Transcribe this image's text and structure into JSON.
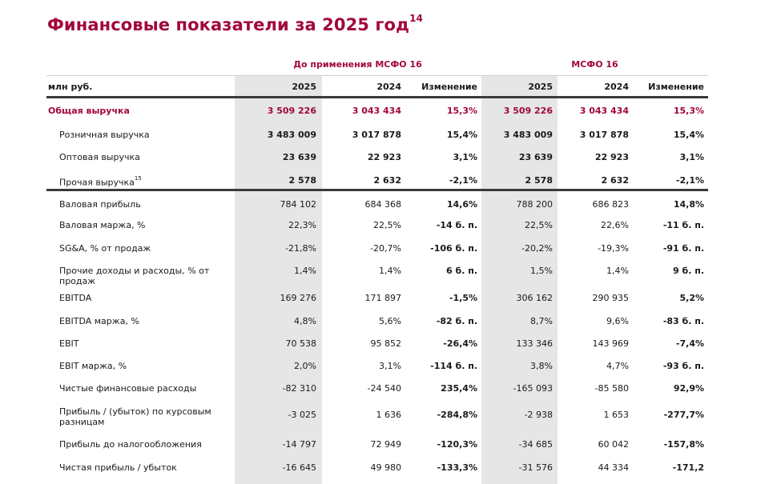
{
  "title": "Финансовые показатели за 2025 год",
  "title_footnote": "14",
  "groups": {
    "before": "До применения МСФО 16",
    "ifrs": "МСФО 16"
  },
  "header": {
    "unit": "млн руб.",
    "c1": "2025",
    "c2": "2024",
    "c3": "Изменение",
    "c4": "2025",
    "c5": "2024",
    "c6": "Изменение"
  },
  "rows": [
    {
      "label": "Общая выручка",
      "v": [
        "3 509 226",
        "3 043 434",
        "15,3%",
        "3 509 226",
        "3 043 434",
        "15,3%"
      ]
    },
    {
      "label": "Розничная выручка",
      "v": [
        "3 483 009",
        "3 017 878",
        "15,4%",
        "3 483 009",
        "3 017 878",
        "15,4%"
      ]
    },
    {
      "label": "Оптовая выручка",
      "v": [
        "23 639",
        "22 923",
        "3,1%",
        "23 639",
        "22 923",
        "3,1%"
      ]
    },
    {
      "label": "Прочая выручка",
      "footnote": "15",
      "v": [
        "2 578",
        "2 632",
        "-2,1%",
        "2 578",
        "2 632",
        "-2,1%"
      ]
    },
    {
      "label": "Валовая прибыль",
      "v": [
        "784 102",
        "684 368",
        "14,6%",
        "788 200",
        "686 823",
        "14,8%"
      ]
    },
    {
      "label": "Валовая маржа, %",
      "v": [
        "22,3%",
        "22,5%",
        "-14 б. п.",
        "22,5%",
        "22,6%",
        "-11 б. п."
      ]
    },
    {
      "label": "SG&A, % от продаж",
      "v": [
        "-21,8%",
        "-20,7%",
        "-106 б. п.",
        "-20,2%",
        "-19,3%",
        "-91 б. п."
      ]
    },
    {
      "label": "Прочие доходы и расходы, % от продаж",
      "v": [
        "1,4%",
        "1,4%",
        "6 б. п.",
        "1,5%",
        "1,4%",
        "9 б. п."
      ]
    },
    {
      "label": "EBITDA",
      "v": [
        "169 276",
        "171 897",
        "-1,5%",
        "306 162",
        "290 935",
        "5,2%"
      ]
    },
    {
      "label": "EBITDA маржа, %",
      "v": [
        "4,8%",
        "5,6%",
        "-82 б. п.",
        "8,7%",
        "9,6%",
        "-83 б. п."
      ]
    },
    {
      "label": "EBIT",
      "v": [
        "70 538",
        "95 852",
        "-26,4%",
        "133 346",
        "143 969",
        "-7,4%"
      ]
    },
    {
      "label": "EBIT маржа, %",
      "v": [
        "2,0%",
        "3,1%",
        "-114 б. п.",
        "3,8%",
        "4,7%",
        "-93 б. п."
      ]
    },
    {
      "label": "Чистые финансовые расходы",
      "v": [
        "-82 310",
        "-24 540",
        "235,4%",
        "-165 093",
        "-85 580",
        "92,9%"
      ]
    },
    {
      "label": "Прибыль / (убыток) по курсовым разницам",
      "v": [
        "-3 025",
        "1 636",
        "-284,8%",
        "-2 938",
        "1 653",
        "-277,7%"
      ]
    },
    {
      "label": "Прибыль до налогообложения",
      "v": [
        "-14 797",
        "72 949",
        "-120,3%",
        "-34 685",
        "60 042",
        "-157,8%"
      ]
    },
    {
      "label": "Чистая прибыль / убыток",
      "v": [
        "-16 645",
        "49 980",
        "-133,3%",
        "-31 576",
        "44 334",
        "-171,2"
      ]
    }
  ]
}
